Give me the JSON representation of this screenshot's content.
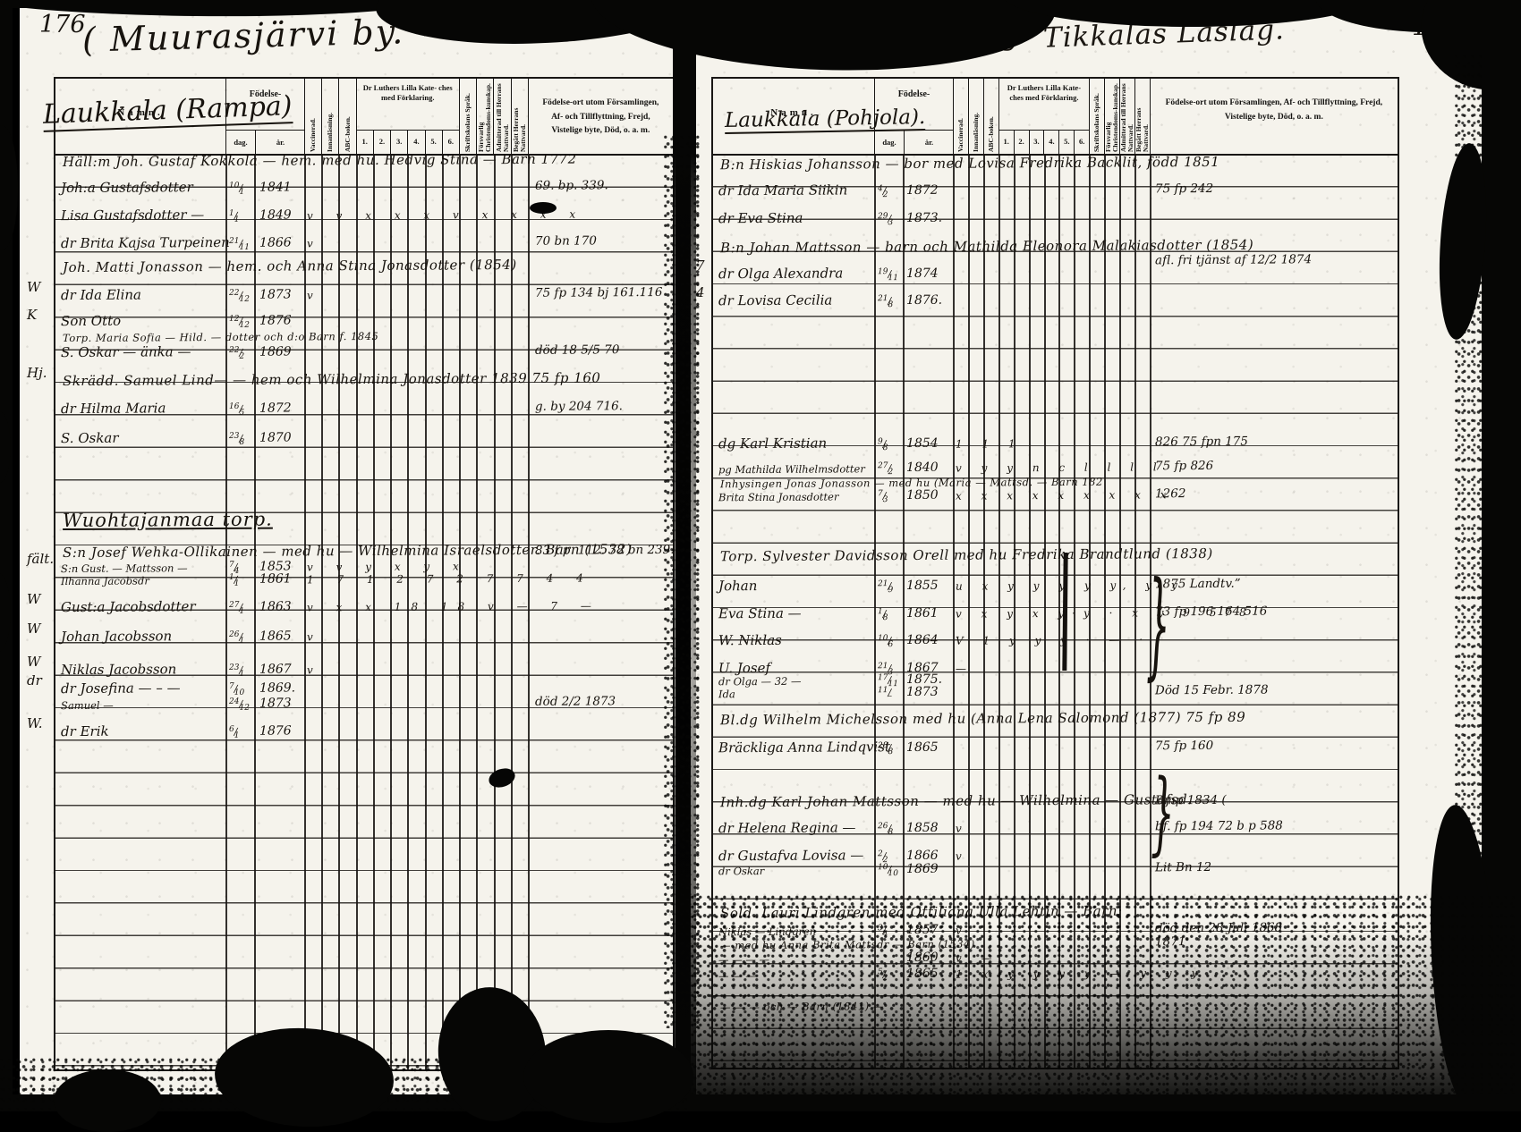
{
  "cols": {
    "namn": "Namn.",
    "fodelse": "Födelse-",
    "dag": "dag.",
    "ar": "år.",
    "vert1": "Vaccinerad.",
    "vert2": "Innanläsning.",
    "vert3": "ABC-boken.",
    "katekes": "Dr Luthers Lilla Kate- ches med Förklaring.",
    "k1": "1.",
    "k2": "2.",
    "k3": "3.",
    "k4": "4.",
    "k5": "5.",
    "k6": "6.",
    "vert4": "Skriftskolans Språk.",
    "vert5": "Försvarlig Christendoms-kunskap.",
    "vert6": "Admitterad till Herrans Nattvard.",
    "vert7": "Begått Herrans Nattvard.",
    "notes": "Födelse-ort utom Församlingen, Af- och Tillflyttning, Frejd, Vistelige byte, Död, o. a. m."
  },
  "left": {
    "page_number": "176",
    "village": "( Muurasjärvi by.",
    "district": "Tikkalas Läslag",
    "family": "Laukkala (Rampa)",
    "entries": [
      {
        "line": 0.35,
        "span": "Häll:m Joh. Gustaf Kokkola — hem. med hu. Hedvig Stina — Barn 1772"
      },
      {
        "line": 1.15,
        "name": "Joh:a Gustafsdotter",
        "day": "10/1",
        "year": "1841",
        "note": "69. bp. 339."
      },
      {
        "line": 2.0,
        "name": "Lisa Gustafsdotter —",
        "day": "1/1",
        "year": "1849",
        "marks": "v  v x x x v x x x x"
      },
      {
        "line": 2.85,
        "name": "dr Brita Kajsa Turpeinen",
        "day": "21/11",
        "year": "1866",
        "marks": "v",
        "note": "70 bn 170"
      },
      {
        "line": 3.6,
        "span": "Joh. Matti Jonasson — hem. och Anna Stina Jonasdotter (1854)"
      },
      {
        "line": 4.45,
        "name": "dr Ida Elina",
        "day": "22/12",
        "year": "1873",
        "marks": "v",
        "note": "75 fp 134    bj 161.116"
      },
      {
        "line": 5.25,
        "name": "Son Otto",
        "day": "12/12",
        "year": "1876"
      },
      {
        "line": 5.72,
        "span": "Torp. Maria Sofia — Hild. — dotter och d:o Barn f. 1845",
        "small": true
      },
      {
        "line": 6.2,
        "name": "S. Oskar — änka —",
        "day": "22/2",
        "year": "1869",
        "note": "död 18 5/5 70"
      },
      {
        "line": 7.1,
        "span": "Skrädd. Samuel Lind— — hem och Wilhelmina Jonasdotter 1839  75 fp 160"
      },
      {
        "line": 7.95,
        "name": "dr Hilma Maria",
        "day": "16/5",
        "year": "1872",
        "note": "g. by 204 716."
      },
      {
        "line": 8.85,
        "name": "S. Oskar",
        "day": "23/8",
        "year": "1870"
      },
      {
        "line": 11.45,
        "heading": "Wuohtajanmaa torp."
      },
      {
        "line": 12.35,
        "span": "S:n Josef Wehka-Ollikainen — med hu — Wilhelmina Israelsdotter. Barn (1532)",
        "note": "83 f p. 112. 78 bn 239."
      },
      {
        "line": 12.8,
        "name": "S:n Gust. — Mattsson —",
        "day": "7/4",
        "year": "1853",
        "marks": "v v y  x y x",
        "small": true
      },
      {
        "line": 13.2,
        "name": "Ilhanna Jacobsdr",
        "day": "1/1",
        "year": "1861",
        "marks": "1 7 1 2 7 2 7 7 4 4",
        "small": true
      },
      {
        "line": 14.05,
        "name": "Gust:a Jacobsdotter",
        "day": "27/1",
        "year": "1863",
        "marks": "v x x 18 18 v — 7 —"
      },
      {
        "line": 14.95,
        "name": "Johan Jacobsson",
        "day": "26/1",
        "year": "1865",
        "marks": "v"
      },
      {
        "line": 15.95,
        "name": "Niklas Jacobsson",
        "day": "23/1",
        "year": "1867",
        "marks": "v"
      },
      {
        "line": 16.55,
        "name": "dr Josefina — – —",
        "day": "7/10",
        "year": "1869."
      },
      {
        "line": 17.0,
        "name": "Samuel —",
        "day": "24/12",
        "year": "1873",
        "note": "död 2/2 1873",
        "small": true
      },
      {
        "line": 17.85,
        "name": "dr Erik",
        "day": "6/1",
        "year": "1876"
      }
    ],
    "margin": [
      {
        "line": 4.45,
        "text": "W"
      },
      {
        "line": 5.3,
        "text": "K"
      },
      {
        "line": 7.1,
        "text": "Hj."
      },
      {
        "line": 12.8,
        "text": "fält."
      },
      {
        "line": 14.05,
        "text": "W"
      },
      {
        "line": 14.95,
        "text": "W"
      },
      {
        "line": 15.95,
        "text": "W"
      },
      {
        "line": 16.55,
        "text": "dr"
      },
      {
        "line": 17.85,
        "text": "W."
      }
    ]
  },
  "right": {
    "page_number": "177.",
    "village": "( Muurasjärvi by",
    "district": "Tikkalas Läslag.",
    "family": "Laukkala (Pohjola).",
    "entries": [
      {
        "line": 0.45,
        "span": "B:n Hiskias Johansson — bor med Lovisa Fredrika Backlit, född 1851"
      },
      {
        "line": 1.25,
        "name": "dr Ida Maria Siikin",
        "day": "4/2",
        "year": "1872",
        "note": "75 fp 242"
      },
      {
        "line": 2.1,
        "name": "dr Eva Stina",
        "day": "29/3",
        "year": "1873."
      },
      {
        "line": 3.0,
        "span": "B:n Johan Mattsson — barn och Mathilda Eleonora Malakiasdotter (1854)"
      },
      {
        "line": 3.45,
        "note": "afl. fri tjänst af 12/2 1874"
      },
      {
        "line": 3.8,
        "name": "dr Olga Alexandra",
        "day": "19/11",
        "year": "1874"
      },
      {
        "line": 4.65,
        "name": "dr Lovisa Cecilia",
        "day": "21/8",
        "year": "1876."
      },
      {
        "line": 9.05,
        "name": "dg Karl Kristian",
        "day": "9/8",
        "year": "1854",
        "marks": "1 1 1",
        "note": "826  75 fpn 175"
      },
      {
        "line": 9.8,
        "name": "pg Mathilda Wilhelmsdotter",
        "day": "27/2",
        "year": "1840",
        "marks": "v  y y  n  c l  l l l",
        "note": "75 fp 826",
        "small": true
      },
      {
        "line": 10.25,
        "span": "Inhysingen Jonas Jonasson — med hu (Maria — Mattsd. — Barn 182",
        "small": true
      },
      {
        "line": 10.65,
        "name": "Brita Stina Jonasdotter",
        "day": "7/3",
        "year": "1850",
        "marks": "x x x x x x x x x",
        "note": "1262",
        "small": true
      },
      {
        "line": 12.55,
        "span": "Torp. Sylvester Davidsson Orell med hu Fredrika Brandtlund (1838)"
      },
      {
        "line": 13.45,
        "name": "Johan",
        "day": "21/9",
        "year": "1855",
        "marks": "u x y y y y y, y y",
        "note": "1875    Landtv.”"
      },
      {
        "line": 14.3,
        "name": "Eva Stina —",
        "day": "1/8",
        "year": "1861",
        "marks": "v x y x y·y · x y 9  578",
        "note": "73 fp 196 164 516"
      },
      {
        "line": 15.15,
        "name": "W. Niklas",
        "day": "10/6",
        "year": "1864",
        "marks": "V 1 y y y  · — ·"
      },
      {
        "line": 16.0,
        "name": "U. Josef",
        "day": "21/3",
        "year": "1867",
        "marks": "—"
      },
      {
        "line": 16.35,
        "name": "dr Olga — 32 —",
        "day": "17/11",
        "year": "1875.",
        "small": true
      },
      {
        "line": 16.75,
        "name": "Ida",
        "day": "11/–",
        "year": "1873",
        "note": "Död 15 Febr. 1878",
        "small": true
      },
      {
        "line": 17.6,
        "span": "Bl.dg Wilhelm Michelsson med hu (Anna Lena Salomond (1877) 75 fp 89"
      },
      {
        "line": 18.45,
        "name": "Bräckliga Anna Lindqvist",
        "day": "28/8",
        "year": "1865",
        "note": "75 fp 160"
      },
      {
        "line": 20.15,
        "span": "Inh.dg Karl Johan Mattsson — med hu — Wilhelmina — Gustafsd. —",
        "note": "Bmp 1834 ("
      },
      {
        "line": 20.95,
        "name": "dr Helena Regina —",
        "day": "26/8",
        "year": "1858",
        "marks": "v",
        "note": "bf. fp 194 72 b p 588"
      },
      {
        "line": 21.8,
        "name": "dr Gustafva Lovisa —",
        "day": "2/2",
        "year": "1866",
        "marks": "v"
      },
      {
        "line": 22.2,
        "name": "dr Oskar",
        "day": "10/10",
        "year": "1869",
        "note": "Lit Bn 12",
        "small": true
      },
      {
        "line": 23.55,
        "span": "Sold. Lauri Lindgren med Ottiliana Ulla Lehtin — Barn:"
      },
      {
        "line": 24.1,
        "name": "Niklas — Lindgren",
        "day": "3/4",
        "year": "1857",
        "marks": "v",
        "note": "död den 28 Juli 1868",
        "small": true
      },
      {
        "line": 24.5,
        "span": "— med hu Anna Brita Mattsdr — Barn (1534)",
        "small": true,
        "note": "1871"
      },
      {
        "line": 24.95,
        "name": "— — — —",
        "year": "1860",
        "marks": "v —",
        "small": true
      },
      {
        "line": 25.45,
        "name": "— — —",
        "day": "5/2",
        "year": "1865",
        "marks": "1 x y y y y — y y y",
        "small": true
      },
      {
        "line": 26.4,
        "span": "— — — och — Barn (1841) —",
        "small": true
      }
    ],
    "margin": [
      {
        "line": 3.8,
        "text": "7"
      },
      {
        "line": 4.65,
        "text": "4"
      }
    ]
  }
}
